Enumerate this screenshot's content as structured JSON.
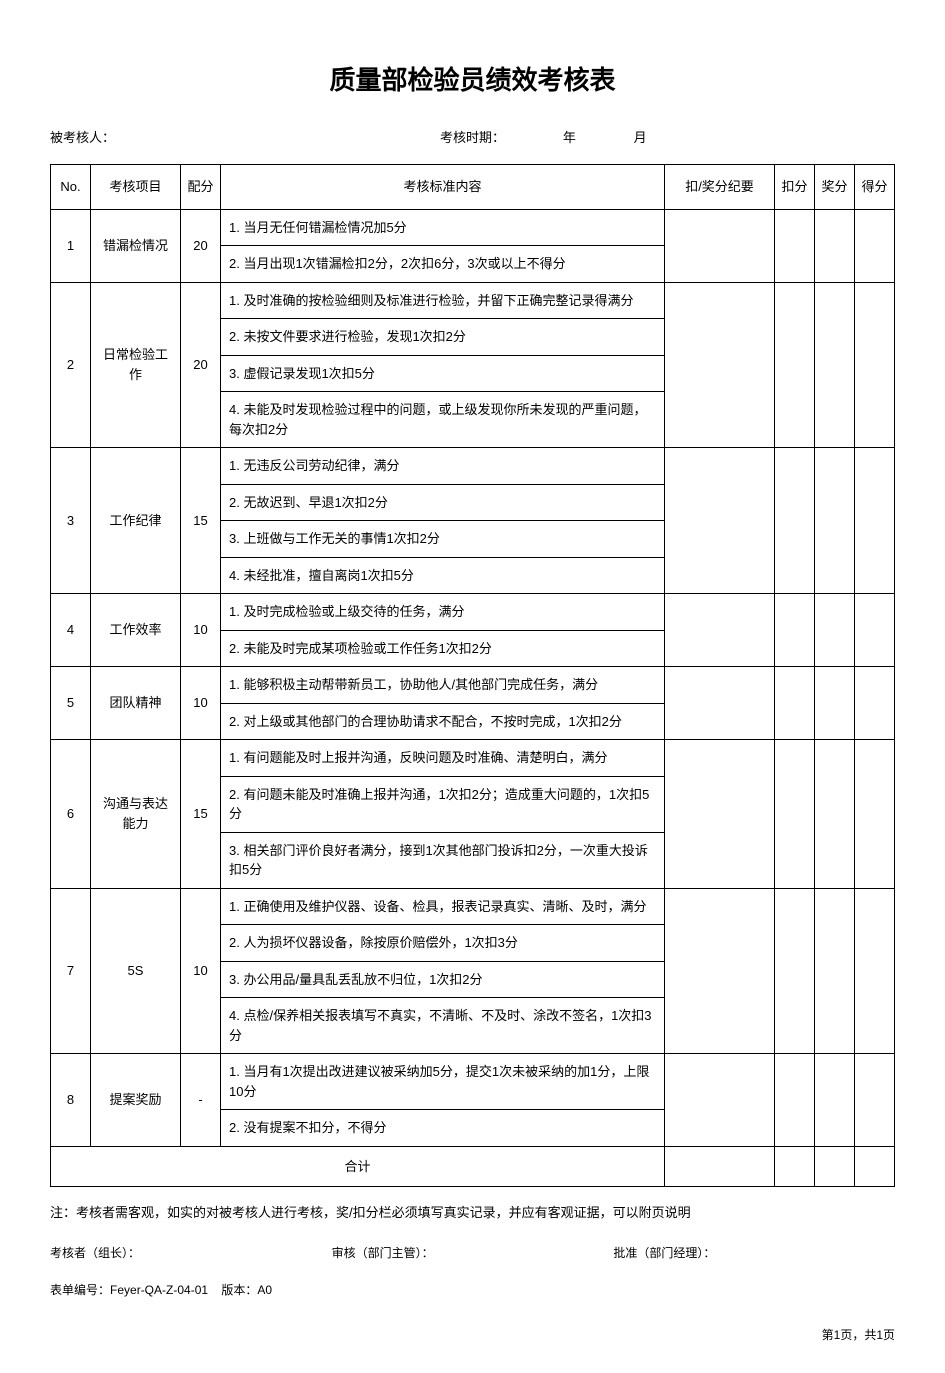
{
  "title": "质量部检验员绩效考核表",
  "header": {
    "assessee_label": "被考核人：",
    "period_label": "考核时期：",
    "year_label": "年",
    "month_label": "月"
  },
  "columns": {
    "no": "No.",
    "item": "考核项目",
    "allocation": "配分",
    "content": "考核标准内容",
    "record": "扣/奖分纪要",
    "deduct": "扣分",
    "award": "奖分",
    "final": "得分"
  },
  "rows": [
    {
      "no": "1",
      "item": "错漏检情况",
      "score": "20",
      "criteria": [
        "1. 当月无任何错漏检情况加5分",
        "2. 当月出现1次错漏检扣2分，2次扣6分，3次或以上不得分"
      ]
    },
    {
      "no": "2",
      "item": "日常检验工作",
      "score": "20",
      "criteria": [
        "1. 及时准确的按检验细则及标准进行检验，并留下正确完整记录得满分",
        "2. 未按文件要求进行检验，发现1次扣2分",
        "3. 虚假记录发现1次扣5分",
        "4. 未能及时发现检验过程中的问题，或上级发现你所未发现的严重问题，每次扣2分"
      ]
    },
    {
      "no": "3",
      "item": "工作纪律",
      "score": "15",
      "criteria": [
        "1. 无违反公司劳动纪律，满分",
        "2. 无故迟到、早退1次扣2分",
        "3. 上班做与工作无关的事情1次扣2分",
        "4. 未经批准，擅自离岗1次扣5分"
      ]
    },
    {
      "no": "4",
      "item": "工作效率",
      "score": "10",
      "criteria": [
        "1. 及时完成检验或上级交待的任务，满分",
        "2. 未能及时完成某项检验或工作任务1次扣2分"
      ]
    },
    {
      "no": "5",
      "item": "团队精神",
      "score": "10",
      "criteria": [
        "1. 能够积极主动帮带新员工，协助他人/其他部门完成任务，满分",
        "2. 对上级或其他部门的合理协助请求不配合，不按时完成，1次扣2分"
      ]
    },
    {
      "no": "6",
      "item": "沟通与表达能力",
      "score": "15",
      "criteria": [
        "1. 有问题能及时上报并沟通，反映问题及时准确、清楚明白，满分",
        "2. 有问题未能及时准确上报并沟通，1次扣2分；造成重大问题的，1次扣5分",
        "3. 相关部门评价良好者满分，接到1次其他部门投诉扣2分，一次重大投诉扣5分"
      ]
    },
    {
      "no": "7",
      "item": "5S",
      "score": "10",
      "criteria": [
        "1. 正确使用及维护仪器、设备、检具，报表记录真实、清晰、及时，满分",
        "2. 人为损坏仪器设备，除按原价赔偿外，1次扣3分",
        "3. 办公用品/量具乱丢乱放不归位，1次扣2分",
        "4. 点检/保养相关报表填写不真实，不清晰、不及时、涂改不签名，1次扣3分"
      ]
    },
    {
      "no": "8",
      "item": "提案奖励",
      "score": "-",
      "criteria": [
        "1. 当月有1次提出改进建议被采纳加5分，提交1次未被采纳的加1分，上限10分",
        "2. 没有提案不扣分，不得分"
      ]
    }
  ],
  "total_label": "合计",
  "note": "注：考核者需客观，如实的对被考核人进行考核，奖/扣分栏必须填写真实记录，并应有客观证据，可以附页说明",
  "signatures": {
    "assessor": "考核者（组长）：",
    "reviewer": "审核（部门主管）：",
    "approver": "批准（部门经理）："
  },
  "form_info": {
    "number_label": "表单编号：",
    "number": "Feyer-QA-Z-04-01",
    "version_label": "版本：",
    "version": "A0"
  },
  "page_label": "第1页，共1页"
}
